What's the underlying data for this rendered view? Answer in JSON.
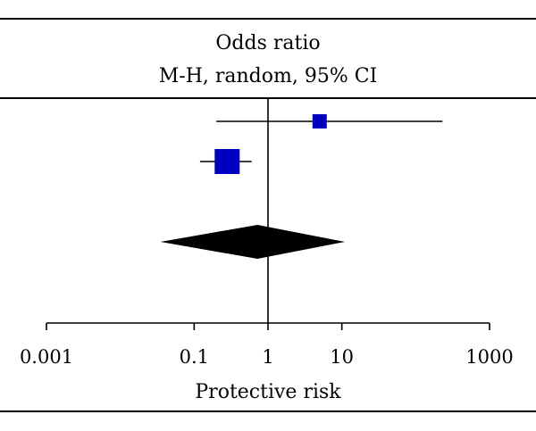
{
  "chart_data": {
    "type": "forest",
    "header": {
      "line1": "Odds ratio",
      "line2": "M-H, random, 95% CI"
    },
    "xlabel": "Protective risk",
    "x_scale": "log",
    "xlim": [
      0.001,
      1000
    ],
    "ticks": [
      {
        "value": 0.001,
        "label": "0.001"
      },
      {
        "value": 0.1,
        "label": "0.1"
      },
      {
        "value": 1,
        "label": "1"
      },
      {
        "value": 10,
        "label": "10"
      },
      {
        "value": 1000,
        "label": "1000"
      }
    ],
    "reference_line": 1,
    "studies": [
      {
        "or": 5.0,
        "ci_low": 0.2,
        "ci_high": 230
      },
      {
        "or": 0.28,
        "ci_low": 0.12,
        "ci_high": 0.6
      }
    ],
    "pooled": {
      "or": 0.72,
      "ci_low": 0.035,
      "ci_high": 11.0
    },
    "colors": {
      "study_box": "#0000c0",
      "diamond": "#000000",
      "lines": "#000000"
    }
  }
}
